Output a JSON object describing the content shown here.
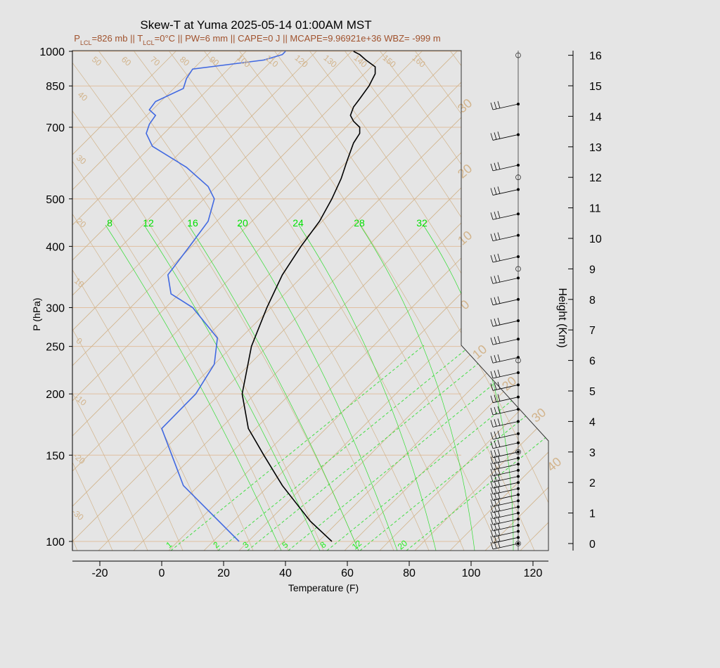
{
  "chart_data": {
    "type": "skew-t",
    "title": "Skew-T at Yuma 2025-05-14 01:00AM MST",
    "subtitle": {
      "p_lcl": "826 mb",
      "t_lcl": "0°C",
      "pw": "6 mm",
      "cape": "0 J",
      "mcape": "9.96921e+36",
      "wbz": "-999 m"
    },
    "xlabel": "Temperature (F)",
    "ylabel": "P (hPa)",
    "y2label": "Height (Km)",
    "xlim": [
      -28,
      125
    ],
    "x_ticks": [
      -20,
      0,
      20,
      40,
      60,
      80,
      100,
      120
    ],
    "p_ticks": [
      100,
      150,
      200,
      250,
      300,
      400,
      500,
      700,
      850,
      1000
    ],
    "height_ticks_km": [
      0,
      1,
      2,
      3,
      4,
      5,
      6,
      7,
      8,
      9,
      10,
      11,
      12,
      13,
      14,
      15,
      16
    ],
    "isotherm_labels": [
      "50",
      "60",
      "70",
      "80",
      "90",
      "100",
      "110",
      "120",
      "130",
      "140",
      "150",
      "160"
    ],
    "left_skew_labels": [
      "40",
      "30",
      "20",
      "10",
      "0",
      "-10",
      "-20",
      "-30"
    ],
    "right_skew_labels": [
      "30",
      "20",
      "10",
      "0",
      "10",
      "20",
      "30",
      "40"
    ],
    "mixing_ratio_top": [
      "8",
      "12",
      "16",
      "20",
      "24",
      "28",
      "32"
    ],
    "mixing_ratio_bottom": [
      "1",
      "2",
      "3",
      "5",
      "8",
      "12",
      "20"
    ],
    "series": [
      {
        "name": "Temperature",
        "color": "#000000",
        "points": [
          [
            1000,
            62
          ],
          [
            985,
            64
          ],
          [
            960,
            66
          ],
          [
            930,
            69
          ],
          [
            900,
            69
          ],
          [
            850,
            67
          ],
          [
            800,
            64
          ],
          [
            770,
            62
          ],
          [
            740,
            61
          ],
          [
            720,
            62
          ],
          [
            700,
            64
          ],
          [
            680,
            64
          ],
          [
            650,
            62
          ],
          [
            600,
            60
          ],
          [
            550,
            58
          ],
          [
            500,
            55
          ],
          [
            450,
            51
          ],
          [
            400,
            45
          ],
          [
            350,
            39
          ],
          [
            300,
            34
          ],
          [
            250,
            29
          ],
          [
            200,
            26
          ],
          [
            170,
            28
          ],
          [
            150,
            33
          ],
          [
            130,
            39
          ],
          [
            110,
            48
          ],
          [
            100,
            55
          ]
        ]
      },
      {
        "name": "Dewpoint",
        "color": "#4169e1",
        "points": [
          [
            1000,
            40
          ],
          [
            985,
            39
          ],
          [
            960,
            33
          ],
          [
            920,
            10
          ],
          [
            880,
            8
          ],
          [
            840,
            7
          ],
          [
            790,
            -2
          ],
          [
            760,
            -4
          ],
          [
            740,
            -2
          ],
          [
            710,
            -4
          ],
          [
            680,
            -5
          ],
          [
            640,
            -3
          ],
          [
            580,
            8
          ],
          [
            530,
            15
          ],
          [
            500,
            17
          ],
          [
            450,
            15
          ],
          [
            400,
            9
          ],
          [
            350,
            2
          ],
          [
            320,
            3
          ],
          [
            300,
            10
          ],
          [
            260,
            18
          ],
          [
            230,
            17
          ],
          [
            200,
            11
          ],
          [
            170,
            0
          ],
          [
            130,
            7
          ],
          [
            100,
            25
          ]
        ]
      }
    ],
    "wind_profile_km": [
      0,
      0.2,
      0.4,
      0.6,
      0.8,
      1.0,
      1.2,
      1.4,
      1.6,
      1.8,
      2.0,
      2.2,
      2.4,
      2.6,
      2.8,
      3.0,
      3.3,
      3.6,
      4.0,
      4.4,
      4.8,
      5.2,
      5.6,
      6.1,
      6.7,
      7.3,
      8.0,
      8.7,
      9.4,
      10.1,
      10.8,
      11.6,
      12.4,
      13.4,
      14.4
    ],
    "hodograph_ring_km": [
      0,
      3,
      6,
      9,
      12,
      16
    ]
  }
}
